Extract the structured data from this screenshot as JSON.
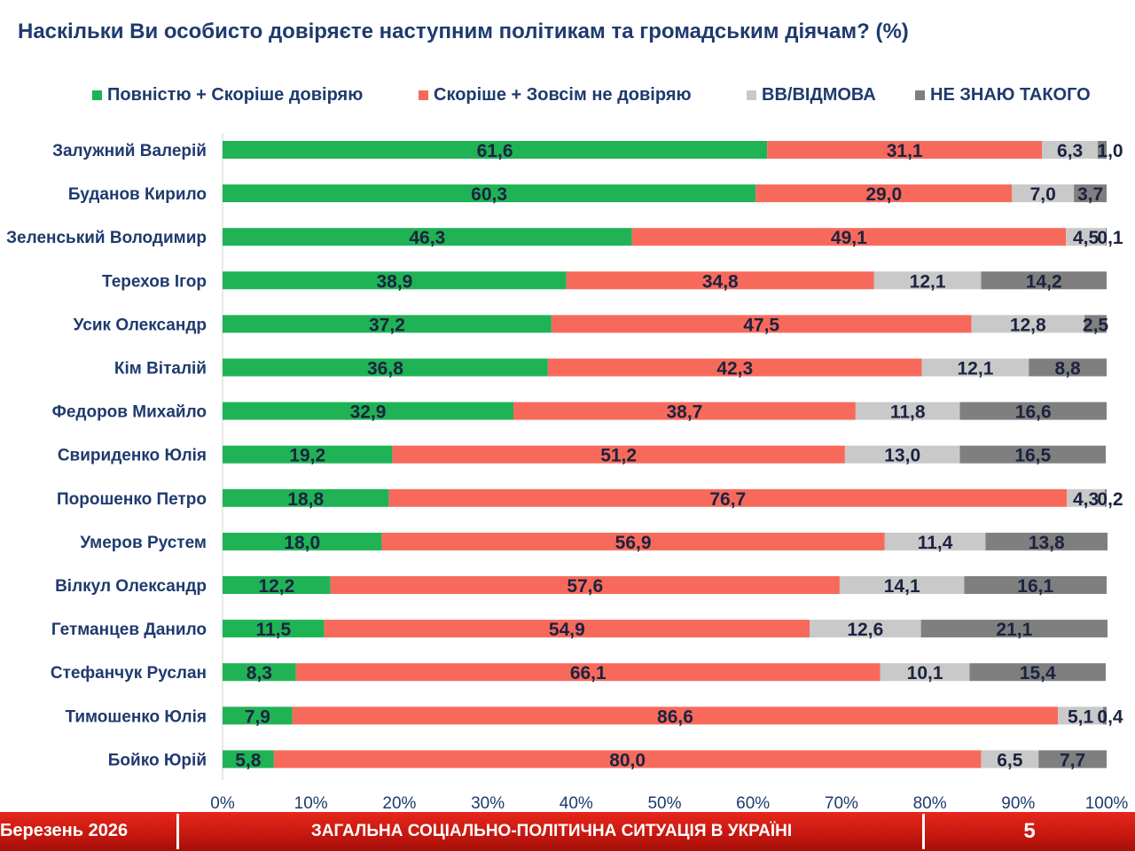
{
  "title": "Наскільки Ви особисто довіряєте наступним політикам та громадським діячам? (%)",
  "colors": {
    "title": "#1f3a6e",
    "trust": "#1fb356",
    "distrust": "#f76a5b",
    "hard_to_say": "#c9c9c9",
    "dont_know": "#7f7f7f",
    "footer": "#d71f16"
  },
  "chart_data": {
    "type": "bar",
    "orientation": "horizontal",
    "stacked": "100%",
    "title": "Наскільки Ви особисто довіряєте наступним політикам та громадським діячам? (%)",
    "legend_position": "top",
    "grid": false,
    "xlim": [
      0,
      100
    ],
    "x_ticks": [
      "0%",
      "10%",
      "20%",
      "30%",
      "40%",
      "50%",
      "60%",
      "70%",
      "80%",
      "90%",
      "100%"
    ],
    "categories": [
      "Залужний Валерій",
      "Буданов Кирило",
      "Зеленський Володимир",
      "Терехов Ігор",
      "Усик Олександр",
      "Кім Віталій",
      "Федоров Михайло",
      "Свириденко Юлія",
      "Порошенко Петро",
      "Умеров Рустем",
      "Вілкул Олександр",
      "Гетманцев Данило",
      "Стефанчук Руслан",
      "Тимошенко Юлія",
      "Бойко Юрій"
    ],
    "series": [
      {
        "name": "Повністю + Скоріше довіряю",
        "color": "#1fb356",
        "values": [
          61.6,
          60.3,
          46.3,
          38.9,
          37.2,
          36.8,
          32.9,
          19.2,
          18.8,
          18.0,
          12.2,
          11.5,
          8.3,
          7.9,
          5.8
        ],
        "labels": [
          "61,6",
          "60,3",
          "46,3",
          "38,9",
          "37,2",
          "36,8",
          "32,9",
          "19,2",
          "18,8",
          "18,0",
          "12,2",
          "11,5",
          "8,3",
          "7,9",
          "5,8"
        ]
      },
      {
        "name": "Скоріше + Зовсім не довіряю",
        "color": "#f76a5b",
        "values": [
          31.1,
          29.0,
          49.1,
          34.8,
          47.5,
          42.3,
          38.7,
          51.2,
          76.7,
          56.9,
          57.6,
          54.9,
          66.1,
          86.6,
          80.0
        ],
        "labels": [
          "31,1",
          "29,0",
          "49,1",
          "34,8",
          "47,5",
          "42,3",
          "38,7",
          "51,2",
          "76,7",
          "56,9",
          "57,6",
          "54,9",
          "66,1",
          "86,6",
          "80,0"
        ]
      },
      {
        "name": "ВВ/ВІДМОВА",
        "color": "#c9c9c9",
        "values": [
          6.3,
          7.0,
          4.5,
          12.1,
          12.8,
          12.1,
          11.8,
          13.0,
          4.3,
          11.4,
          14.1,
          12.6,
          10.1,
          5.1,
          6.5
        ],
        "labels": [
          "6,3",
          "7,0",
          "4,5",
          "12,1",
          "12,8",
          "12,1",
          "11,8",
          "13,0",
          "4,3",
          "11,4",
          "14,1",
          "12,6",
          "10,1",
          "5,1",
          "6,5"
        ]
      },
      {
        "name": "НЕ ЗНАЮ ТАКОГО",
        "color": "#7f7f7f",
        "values": [
          1.0,
          3.7,
          0.1,
          14.2,
          2.5,
          8.8,
          16.6,
          16.5,
          0.2,
          13.8,
          16.1,
          21.1,
          15.4,
          0.4,
          7.7
        ],
        "labels": [
          "1,0",
          "3,7",
          "0,1",
          "14,2",
          "2,5",
          "8,8",
          "16,6",
          "16,5",
          "0,2",
          "13,8",
          "16,1",
          "21,1",
          "15,4",
          "0,4",
          "7,7"
        ]
      }
    ]
  },
  "footer": {
    "date": "Березень 2026",
    "title": "ЗАГАЛЬНА СОЦІАЛЬНО-ПОЛІТИЧНА СИТУАЦІЯ В УКРАЇНІ",
    "page": "5"
  }
}
